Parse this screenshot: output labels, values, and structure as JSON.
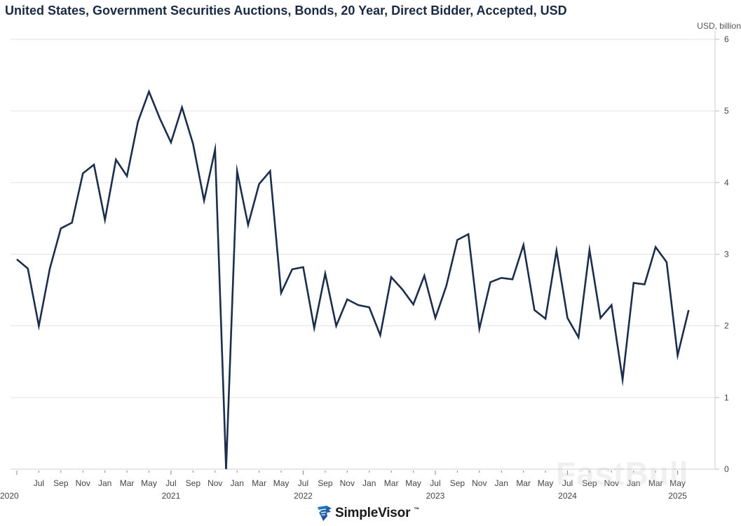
{
  "chart_data": {
    "type": "line",
    "title": "United States, Government Securities Auctions, Bonds, 20 Year, Direct Bidder, Accepted, USD",
    "ylabel": "USD, billion",
    "xlabel": "",
    "ylim": [
      0,
      6
    ],
    "yticks": [
      0,
      1,
      2,
      3,
      4,
      5,
      6
    ],
    "grid": true,
    "legend": "none",
    "line_color": "#1b2e4c",
    "x_start": "2020-05",
    "x_end": "2025-06",
    "x_tick_labels": [
      {
        "month": "2020-07",
        "label": "Jul"
      },
      {
        "month": "2020-09",
        "label": "Sep"
      },
      {
        "month": "2020-11",
        "label": "Nov"
      },
      {
        "month": "2021-01",
        "label": "Jan"
      },
      {
        "month": "2021-03",
        "label": "Mar"
      },
      {
        "month": "2021-05",
        "label": "May"
      },
      {
        "month": "2021-07",
        "label": "Jul"
      },
      {
        "month": "2021-09",
        "label": "Sep"
      },
      {
        "month": "2021-11",
        "label": "Nov"
      },
      {
        "month": "2022-01",
        "label": "Jan"
      },
      {
        "month": "2022-03",
        "label": "Mar"
      },
      {
        "month": "2022-05",
        "label": "May"
      },
      {
        "month": "2022-07",
        "label": "Jul"
      },
      {
        "month": "2022-09",
        "label": "Sep"
      },
      {
        "month": "2022-11",
        "label": "Nov"
      },
      {
        "month": "2023-01",
        "label": "Jan"
      },
      {
        "month": "2023-03",
        "label": "Mar"
      },
      {
        "month": "2023-05",
        "label": "May"
      },
      {
        "month": "2023-07",
        "label": "Jul"
      },
      {
        "month": "2023-09",
        "label": "Sep"
      },
      {
        "month": "2023-11",
        "label": "Nov"
      },
      {
        "month": "2024-01",
        "label": "Jan"
      },
      {
        "month": "2024-03",
        "label": "Mar"
      },
      {
        "month": "2024-05",
        "label": "May"
      },
      {
        "month": "2024-07",
        "label": "Jul"
      },
      {
        "month": "2024-09",
        "label": "Sep"
      },
      {
        "month": "2024-11",
        "label": "Nov"
      },
      {
        "month": "2025-01",
        "label": "Jan"
      },
      {
        "month": "2025-03",
        "label": "Mar"
      },
      {
        "month": "2025-05",
        "label": "May"
      }
    ],
    "year_labels": [
      {
        "month": "2020-05",
        "label": "2020"
      },
      {
        "month": "2021-07",
        "label": "2021"
      },
      {
        "month": "2022-07",
        "label": "2022"
      },
      {
        "month": "2023-07",
        "label": "2023"
      },
      {
        "month": "2024-07",
        "label": "2024"
      },
      {
        "month": "2025-05",
        "label": "2025"
      }
    ],
    "series": [
      {
        "name": "Direct Bidder, Accepted",
        "x": [
          "2020-05",
          "2020-06",
          "2020-07",
          "2020-08",
          "2020-09",
          "2020-10",
          "2020-11",
          "2020-12",
          "2021-01",
          "2021-02",
          "2021-03",
          "2021-04",
          "2021-05",
          "2021-06",
          "2021-07",
          "2021-08",
          "2021-09",
          "2021-10",
          "2021-11",
          "2021-12",
          "2022-01",
          "2022-02",
          "2022-03",
          "2022-04",
          "2022-05",
          "2022-06",
          "2022-07",
          "2022-08",
          "2022-09",
          "2022-10",
          "2022-11",
          "2022-12",
          "2023-01",
          "2023-02",
          "2023-03",
          "2023-04",
          "2023-05",
          "2023-06",
          "2023-07",
          "2023-08",
          "2023-09",
          "2023-10",
          "2023-11",
          "2023-12",
          "2024-01",
          "2024-02",
          "2024-03",
          "2024-04",
          "2024-05",
          "2024-06",
          "2024-07",
          "2024-08",
          "2024-09",
          "2024-10",
          "2024-11",
          "2024-12",
          "2025-01",
          "2025-02",
          "2025-03",
          "2025-04",
          "2025-05",
          "2025-06"
        ],
        "values": [
          2.93,
          2.8,
          2.0,
          2.8,
          3.36,
          3.44,
          4.13,
          4.25,
          3.48,
          4.32,
          4.09,
          4.85,
          5.27,
          4.89,
          4.56,
          5.05,
          4.54,
          3.75,
          4.46,
          0.0,
          4.16,
          3.41,
          3.98,
          4.16,
          2.46,
          2.79,
          2.82,
          1.97,
          2.73,
          2.0,
          2.37,
          2.29,
          2.26,
          1.87,
          2.68,
          2.51,
          2.3,
          2.7,
          2.11,
          2.56,
          3.2,
          3.28,
          1.96,
          2.61,
          2.67,
          2.65,
          3.13,
          2.22,
          2.1,
          3.05,
          2.11,
          1.84,
          3.06,
          2.11,
          2.29,
          1.25,
          2.6,
          2.58,
          3.1,
          2.89,
          1.59,
          2.22
        ]
      }
    ]
  },
  "branding": {
    "logo_text": "SimpleVisor",
    "logo_tm": "™",
    "watermark": "FastBull"
  }
}
